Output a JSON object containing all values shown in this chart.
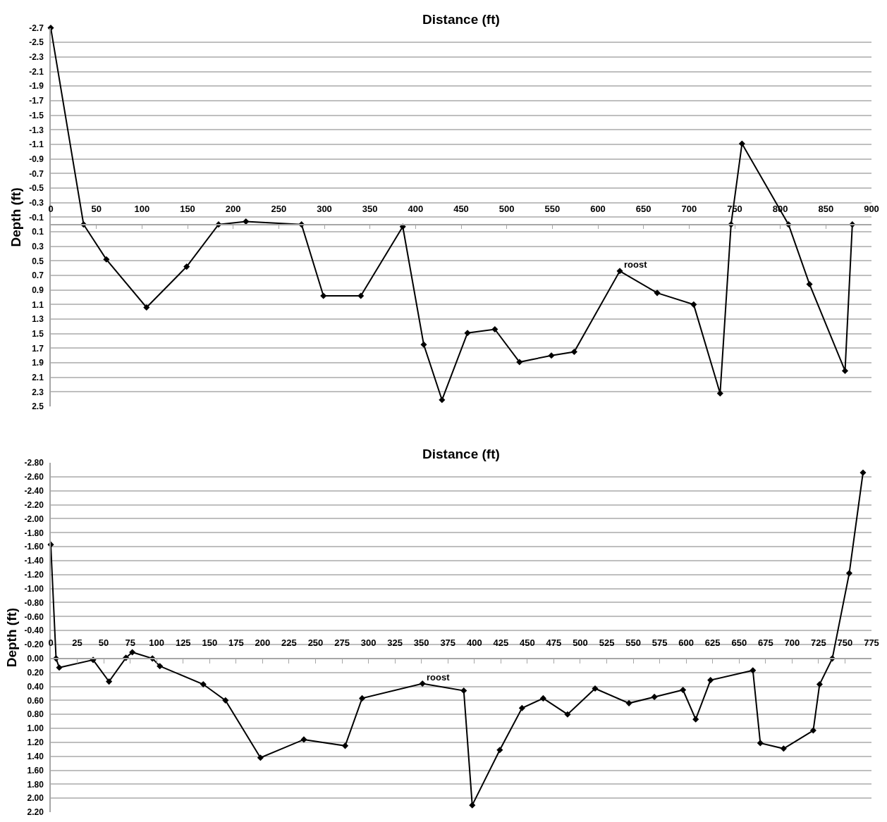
{
  "chart_data": [
    {
      "type": "line",
      "xlabel": "Distance (ft)",
      "ylabel": "Depth (ft)",
      "x": [
        0,
        36,
        61,
        105,
        149,
        184,
        214,
        275,
        299,
        340,
        386,
        409,
        429,
        457,
        487,
        514,
        549,
        574,
        624,
        665,
        705,
        734,
        746,
        758,
        809,
        832,
        871,
        879
      ],
      "series": [
        {
          "color": "#000000",
          "values": [
            -2.7,
            0.0,
            0.48,
            1.14,
            0.58,
            0.0,
            -0.04,
            0.0,
            0.98,
            0.98,
            0.03,
            1.65,
            2.41,
            1.49,
            1.44,
            1.89,
            1.8,
            1.75,
            0.64,
            0.94,
            1.1,
            2.32,
            0.0,
            -1.11,
            0.0,
            0.82,
            2.01,
            0.0
          ]
        }
      ],
      "xlim": [
        0,
        900
      ],
      "xticks": [
        0,
        50,
        100,
        150,
        200,
        250,
        300,
        350,
        400,
        450,
        500,
        550,
        600,
        650,
        700,
        750,
        800,
        850,
        900
      ],
      "ylim": [
        2.5,
        -2.7
      ],
      "yticks": [
        -2.7,
        -2.5,
        -2.3,
        -2.1,
        -1.9,
        -1.7,
        -1.5,
        -1.3,
        -1.1,
        -0.9,
        -0.7,
        -0.5,
        -0.3,
        -0.1,
        0.1,
        0.3,
        0.5,
        0.7,
        0.9,
        1.1,
        1.3,
        1.5,
        1.7,
        1.9,
        2.1,
        2.3,
        2.5
      ],
      "annotations": [
        {
          "text": "roost",
          "x": 624,
          "y": 0.64
        }
      ],
      "grid": "y",
      "marker": "diamond",
      "line_style": "solid"
    },
    {
      "type": "line",
      "xlabel": "Distance (ft)",
      "ylabel": "Depth (ft)",
      "x": [
        0,
        5,
        8,
        40,
        55,
        71,
        77,
        96,
        103,
        144,
        165,
        198,
        239,
        278,
        294,
        351,
        390,
        398,
        424,
        445,
        465,
        488,
        514,
        546,
        570,
        597,
        609,
        623,
        663,
        670,
        692,
        720,
        726,
        738,
        754,
        767
      ],
      "series": [
        {
          "color": "#000000",
          "values": [
            -1.63,
            0.0,
            0.13,
            0.02,
            0.33,
            -0.01,
            -0.09,
            0.0,
            0.11,
            0.37,
            0.6,
            1.42,
            1.16,
            1.25,
            0.57,
            0.36,
            0.46,
            2.1,
            1.31,
            0.71,
            0.57,
            0.8,
            0.43,
            0.64,
            0.55,
            0.45,
            0.87,
            0.31,
            0.17,
            1.21,
            1.29,
            1.03,
            0.37,
            0.0,
            -1.22,
            -2.66
          ]
        }
      ],
      "xlim": [
        0,
        775
      ],
      "xticks": [
        0,
        25,
        50,
        75,
        100,
        125,
        150,
        175,
        200,
        225,
        250,
        275,
        300,
        325,
        350,
        375,
        400,
        425,
        450,
        475,
        500,
        525,
        550,
        575,
        600,
        625,
        650,
        675,
        700,
        725,
        750,
        775
      ],
      "ylim": [
        2.2,
        -2.8
      ],
      "yticks": [
        {
          "value": -2.8,
          "label": "-2.80"
        },
        {
          "value": -2.6,
          "label": "-2.60"
        },
        {
          "value": -2.4,
          "label": "-2.40"
        },
        {
          "value": -2.2,
          "label": "-2.20"
        },
        {
          "value": -2.0,
          "label": "-2.00"
        },
        {
          "value": -1.8,
          "label": "-1.80"
        },
        {
          "value": -1.6,
          "label": "-1.60"
        },
        {
          "value": -1.4,
          "label": "-1.40"
        },
        {
          "value": -1.2,
          "label": "-1.20"
        },
        {
          "value": -1.0,
          "label": "-1.00"
        },
        {
          "value": -0.8,
          "label": "-0.80"
        },
        {
          "value": -0.6,
          "label": "-0.60"
        },
        {
          "value": -0.4,
          "label": "-0.40"
        },
        {
          "value": -0.2,
          "label": "-0.20"
        },
        {
          "value": 0.0,
          "label": "0.00"
        },
        {
          "value": 0.2,
          "label": "0.20"
        },
        {
          "value": 0.4,
          "label": "0.40"
        },
        {
          "value": 0.6,
          "label": "0.60"
        },
        {
          "value": 0.8,
          "label": "0.80"
        },
        {
          "value": 1.0,
          "label": "1.00"
        },
        {
          "value": 1.2,
          "label": "1.20"
        },
        {
          "value": 1.4,
          "label": "1.40"
        },
        {
          "value": 1.6,
          "label": "1.60"
        },
        {
          "value": 1.8,
          "label": "1.80"
        },
        {
          "value": 2.0,
          "label": "2.00"
        },
        {
          "value": 2.2,
          "label": "2.20"
        }
      ],
      "annotations": [
        {
          "text": "roost",
          "x": 351,
          "y": 0.36
        }
      ],
      "grid": "y",
      "marker": "diamond",
      "line_style": "solid"
    }
  ]
}
